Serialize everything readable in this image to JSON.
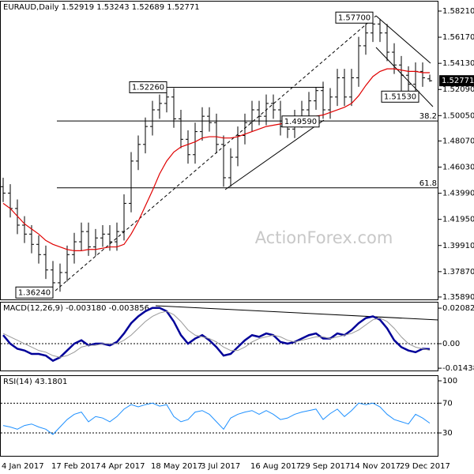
{
  "chart_data": [
    {
      "type": "ohlc",
      "title": "EURAUD,Daily  1.52919 1.53243 1.52689 1.52771",
      "watermark": "ActionForex.com",
      "color": "#000000",
      "categories": [
        "4 Jan 2017",
        null,
        null,
        null,
        null,
        null,
        null,
        "17 Feb 2017",
        null,
        null,
        null,
        null,
        null,
        null,
        "4 Apr 2017",
        null,
        null,
        null,
        null,
        null,
        null,
        "18 May 2017",
        null,
        null,
        null,
        null,
        null,
        null,
        "3 Jul 2017",
        null,
        null,
        null,
        null,
        null,
        null,
        "16 Aug 2017",
        null,
        null,
        null,
        null,
        null,
        null,
        "29 Sep 2017",
        null,
        null,
        null,
        null,
        null,
        null,
        "14 Nov 2017",
        null,
        null,
        null,
        null,
        null,
        null,
        "29 Dec 2017",
        null,
        null,
        null,
        null
      ],
      "open": [
        1.445,
        1.44,
        1.428,
        1.415,
        1.408,
        1.4,
        1.392,
        1.38,
        1.37,
        1.378,
        1.392,
        1.402,
        1.41,
        1.398,
        1.405,
        1.408,
        1.402,
        1.41,
        1.432,
        1.465,
        1.478,
        1.492,
        1.505,
        1.51,
        1.515,
        1.498,
        1.482,
        1.47,
        1.488,
        1.5,
        1.495,
        1.478,
        1.452,
        1.468,
        1.485,
        1.495,
        1.505,
        1.5,
        1.51,
        1.505,
        1.492,
        1.49,
        1.498,
        1.505,
        1.512,
        1.52,
        1.505,
        1.515,
        1.53,
        1.515,
        1.53,
        1.555,
        1.565,
        1.572,
        1.565,
        1.55,
        1.54,
        1.532,
        1.525,
        1.535,
        1.52919
      ],
      "high": [
        1.452,
        1.447,
        1.435,
        1.422,
        1.415,
        1.407,
        1.399,
        1.387,
        1.385,
        1.399,
        1.409,
        1.417,
        1.417,
        1.412,
        1.415,
        1.415,
        1.417,
        1.439,
        1.472,
        1.485,
        1.499,
        1.512,
        1.517,
        1.5226,
        1.522,
        1.505,
        1.489,
        1.495,
        1.507,
        1.507,
        1.502,
        1.485,
        1.475,
        1.492,
        1.502,
        1.512,
        1.512,
        1.517,
        1.517,
        1.512,
        1.499,
        1.505,
        1.512,
        1.519,
        1.5226,
        1.527,
        1.522,
        1.537,
        1.537,
        1.537,
        1.562,
        1.572,
        1.577,
        1.576,
        1.572,
        1.557,
        1.547,
        1.539,
        1.542,
        1.542,
        1.53243
      ],
      "low": [
        1.433,
        1.421,
        1.408,
        1.401,
        1.393,
        1.385,
        1.373,
        1.3624,
        1.363,
        1.371,
        1.385,
        1.395,
        1.391,
        1.391,
        1.398,
        1.395,
        1.395,
        1.403,
        1.425,
        1.458,
        1.471,
        1.485,
        1.498,
        1.503,
        1.491,
        1.475,
        1.463,
        1.463,
        1.481,
        1.488,
        1.471,
        1.445,
        1.445,
        1.461,
        1.478,
        1.488,
        1.493,
        1.493,
        1.498,
        1.485,
        1.483,
        1.483,
        1.491,
        1.498,
        1.505,
        1.498,
        1.498,
        1.508,
        1.508,
        1.508,
        1.523,
        1.548,
        1.558,
        1.558,
        1.543,
        1.533,
        1.5153,
        1.518,
        1.518,
        1.523,
        1.52689
      ],
      "close": [
        1.44,
        1.428,
        1.415,
        1.408,
        1.4,
        1.392,
        1.38,
        1.37,
        1.378,
        1.392,
        1.402,
        1.41,
        1.398,
        1.405,
        1.408,
        1.402,
        1.41,
        1.432,
        1.465,
        1.478,
        1.492,
        1.505,
        1.51,
        1.515,
        1.498,
        1.482,
        1.47,
        1.488,
        1.5,
        1.495,
        1.478,
        1.452,
        1.468,
        1.485,
        1.495,
        1.505,
        1.5,
        1.51,
        1.505,
        1.492,
        1.49,
        1.498,
        1.505,
        1.512,
        1.52,
        1.505,
        1.515,
        1.53,
        1.515,
        1.53,
        1.555,
        1.565,
        1.572,
        1.565,
        1.55,
        1.54,
        1.532,
        1.525,
        1.535,
        1.53,
        1.52771
      ],
      "ma": {
        "color": "#e00000",
        "values": [
          1.432,
          1.428,
          1.422,
          1.416,
          1.412,
          1.408,
          1.403,
          1.4,
          1.398,
          1.396,
          1.395,
          1.395,
          1.396,
          1.396,
          1.397,
          1.398,
          1.398,
          1.4,
          1.408,
          1.418,
          1.43,
          1.442,
          1.455,
          1.465,
          1.472,
          1.476,
          1.478,
          1.48,
          1.483,
          1.484,
          1.484,
          1.483,
          1.483,
          1.484,
          1.486,
          1.488,
          1.49,
          1.492,
          1.493,
          1.494,
          1.495,
          1.496,
          1.497,
          1.499,
          1.5,
          1.501,
          1.503,
          1.505,
          1.507,
          1.51,
          1.516,
          1.524,
          1.531,
          1.535,
          1.537,
          1.537,
          1.536,
          1.535,
          1.535,
          1.534,
          1.534
        ]
      },
      "ylim": [
        1.3564,
        1.5895
      ],
      "yticks": [
        {
          "value": 1.5821,
          "label": "1.58210"
        },
        {
          "value": 1.5617,
          "label": "1.56170"
        },
        {
          "value": 1.5413,
          "label": "1.54130"
        },
        {
          "value": 1.5209,
          "label": "1.52090"
        },
        {
          "value": 1.5005,
          "label": "1.50050"
        },
        {
          "value": 1.4807,
          "label": "1.48070"
        },
        {
          "value": 1.4603,
          "label": "1.46030"
        },
        {
          "value": 1.4399,
          "label": "1.43990"
        },
        {
          "value": 1.4195,
          "label": "1.41950"
        },
        {
          "value": 1.3991,
          "label": "1.39910"
        },
        {
          "value": 1.3787,
          "label": "1.37870"
        },
        {
          "value": 1.3589,
          "label": "1.35890"
        }
      ],
      "annotations": [
        {
          "value": 1.577,
          "label": "1.57700"
        },
        {
          "value": 1.5226,
          "label": "1.52260"
        },
        {
          "value": 1.5153,
          "label": "1.51530"
        },
        {
          "value": 1.3624,
          "label": "1.36240"
        },
        {
          "value": 1.4959,
          "label": "1.49590"
        }
      ],
      "fib_levels": [
        {
          "value": 1.4963,
          "label": "38.2"
        },
        {
          "value": 1.4441,
          "label": "61.8"
        }
      ]
    },
    {
      "type": "line",
      "title": "MACD(12,26,9) -0.003180 -0.003856",
      "series": [
        {
          "color": "#000099",
          "width": 2.5,
          "values": [
            0.005,
            0,
            -0.003,
            -0.004,
            -0.006,
            -0.006,
            -0.007,
            -0.01,
            -0.008,
            -0.004,
            0,
            0.002,
            -0.001,
            0,
            0,
            -0.001,
            0.001,
            0.006,
            0.012,
            0.016,
            0.019,
            0.021,
            0.021,
            0.019,
            0.013,
            0.005,
            0,
            0.003,
            0.005,
            0.002,
            -0.002,
            -0.007,
            -0.006,
            -0.002,
            0.002,
            0.005,
            0.004,
            0.006,
            0.005,
            0.001,
            0,
            0.001,
            0.003,
            0.005,
            0.006,
            0.003,
            0.003,
            0.006,
            0.005,
            0.008,
            0.012,
            0.015,
            0.016,
            0.014,
            0.009,
            0.002,
            -0.002,
            -0.004,
            -0.005,
            -0.003,
            -0.00318
          ]
        },
        {
          "color": "#999999",
          "width": 1,
          "values": [
            0.006,
            0.004,
            0.002,
            0,
            -0.002,
            -0.004,
            -0.005,
            -0.007,
            -0.008,
            -0.007,
            -0.005,
            -0.002,
            -0.001,
            -0.001,
            0,
            0,
            0,
            0.002,
            0.005,
            0.009,
            0.013,
            0.016,
            0.018,
            0.019,
            0.017,
            0.013,
            0.008,
            0.005,
            0.004,
            0.003,
            0.001,
            -0.002,
            -0.004,
            -0.004,
            -0.002,
            0.001,
            0.003,
            0.004,
            0.005,
            0.004,
            0.002,
            0.001,
            0.002,
            0.003,
            0.004,
            0.004,
            0.003,
            0.004,
            0.005,
            0.006,
            0.008,
            0.011,
            0.014,
            0.015,
            0.013,
            0.009,
            0.004,
            0,
            -0.002,
            -0.003,
            -0.003856
          ]
        }
      ],
      "ylim": [
        -0.0162,
        0.0241
      ],
      "yticks": [
        0.020827,
        {
          "value": 0,
          "label": "0.00"
        },
        -0.014386
      ],
      "hlines": [
        0
      ]
    },
    {
      "type": "line",
      "title": "RSI(14) 43.1801",
      "series": [
        {
          "color": "#1e90ff",
          "width": 1,
          "values": [
            40,
            38,
            35,
            40,
            42,
            38,
            35,
            28,
            38,
            48,
            55,
            58,
            45,
            52,
            50,
            45,
            52,
            62,
            68,
            65,
            68,
            70,
            66,
            68,
            52,
            45,
            48,
            58,
            60,
            55,
            45,
            35,
            50,
            55,
            58,
            60,
            55,
            60,
            55,
            48,
            50,
            55,
            58,
            60,
            62,
            48,
            56,
            62,
            52,
            60,
            70,
            68,
            70,
            65,
            55,
            48,
            45,
            42,
            55,
            50,
            43.1801
          ]
        }
      ],
      "ylim": [
        -1.8,
        106.4
      ],
      "yticks": [
        100,
        70,
        30
      ],
      "hlines": [
        70,
        30
      ]
    }
  ]
}
